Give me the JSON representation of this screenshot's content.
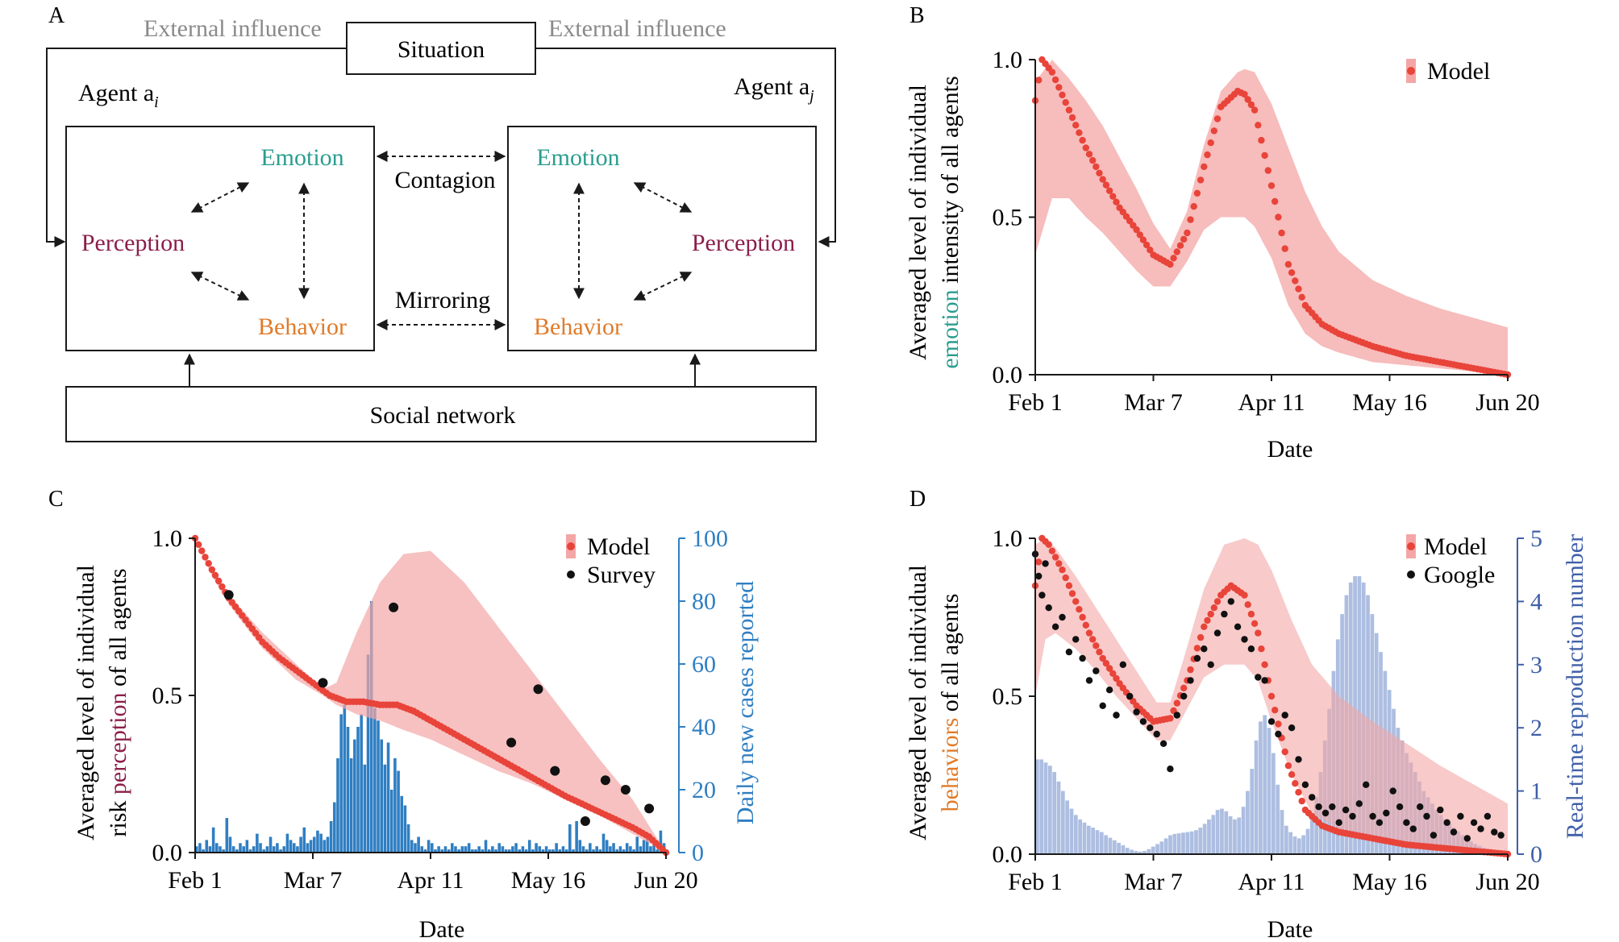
{
  "colors": {
    "emotion": "#2a9d8f",
    "perception": "#8b1e4a",
    "behavior": "#e07b2a",
    "model": "#e8443a",
    "band": "#f4a6a6",
    "gray_text": "#8a8a8a",
    "cases_bar": "#2f7ec2",
    "rt_bar": "#9fb3dc",
    "right_axis_blue": "#2f7ec2",
    "right_axis_navy": "#3f5fa8"
  },
  "panelA": {
    "label": "A",
    "external_left": "External influence",
    "external_right": "External influence",
    "situation": "Situation",
    "agent_i": "Agent a",
    "agent_i_sub": "i",
    "agent_j": "Agent a",
    "agent_j_sub": "j",
    "emotion": "Emotion",
    "perception": "Perception",
    "behavior": "Behavior",
    "contagion": "Contagion",
    "mirroring": "Mirroring",
    "social_network": "Social network"
  },
  "panelB": {
    "label": "B",
    "ylabel_part1": "Averaged level of individual",
    "ylabel_colored": "emotion",
    "ylabel_part2": " intensity of all agents",
    "xlabel": "Date",
    "legend_model": "Model"
  },
  "panelC": {
    "label": "C",
    "ylabel_part1": "Averaged level of individual",
    "ylabel_pre": "risk ",
    "ylabel_colored": "perception",
    "ylabel_post": " of all agents",
    "ylabel_right": "Daily new cases reported",
    "xlabel": "Date",
    "legend_model": "Model",
    "legend_survey": "Survey"
  },
  "panelD": {
    "label": "D",
    "ylabel_part1": "Averaged level of individual",
    "ylabel_colored": "behaviors",
    "ylabel_post": " of all agents",
    "ylabel_right": "Real-time reproduction number",
    "xlabel": "Date",
    "legend_model": "Model",
    "legend_google": "Google"
  },
  "chart_data": [
    {
      "type": "line",
      "panel": "B",
      "title": "",
      "xlabel": "Date",
      "ylabel": "Averaged level of individual emotion intensity of all agents",
      "x_ticks": [
        "Feb 1",
        "Mar 7",
        "Apr 11",
        "May 16",
        "Jun 20"
      ],
      "x_range_days": [
        0,
        140
      ],
      "y_ticks": [
        "0.0",
        "0.5",
        "1.0"
      ],
      "ylim": [
        0,
        1
      ],
      "series": [
        {
          "name": "Model",
          "x": [
            0,
            2,
            5,
            10,
            15,
            20,
            25,
            30,
            35,
            40,
            45,
            50,
            55,
            60,
            62,
            65,
            70,
            75,
            80,
            85,
            90,
            95,
            100,
            110,
            120,
            130,
            140
          ],
          "values": [
            0.87,
            1.0,
            0.96,
            0.84,
            0.72,
            0.62,
            0.53,
            0.46,
            0.38,
            0.35,
            0.45,
            0.66,
            0.85,
            0.9,
            0.89,
            0.84,
            0.6,
            0.35,
            0.22,
            0.16,
            0.13,
            0.11,
            0.09,
            0.06,
            0.04,
            0.02,
            0.0
          ]
        }
      ],
      "band": {
        "x": [
          0,
          5,
          10,
          15,
          20,
          25,
          30,
          35,
          40,
          45,
          50,
          55,
          60,
          62,
          65,
          70,
          75,
          80,
          85,
          90,
          100,
          110,
          120,
          130,
          140
        ],
        "upper": [
          0.93,
          1.0,
          0.94,
          0.87,
          0.79,
          0.69,
          0.59,
          0.48,
          0.4,
          0.52,
          0.73,
          0.9,
          0.96,
          0.97,
          0.96,
          0.86,
          0.72,
          0.58,
          0.47,
          0.39,
          0.3,
          0.25,
          0.21,
          0.18,
          0.15
        ],
        "lower": [
          0.38,
          0.56,
          0.56,
          0.5,
          0.45,
          0.39,
          0.33,
          0.28,
          0.28,
          0.36,
          0.46,
          0.5,
          0.5,
          0.5,
          0.47,
          0.37,
          0.22,
          0.13,
          0.09,
          0.07,
          0.04,
          0.03,
          0.02,
          0.01,
          0.0
        ]
      }
    },
    {
      "type": "line",
      "panel": "C",
      "title": "",
      "xlabel": "Date",
      "ylabel": "Averaged level of individual risk perception of all agents",
      "ylabel_right": "Daily new cases reported",
      "x_ticks": [
        "Feb 1",
        "Mar 7",
        "Apr 11",
        "May 16",
        "Jun 20"
      ],
      "x_range_days": [
        0,
        140
      ],
      "y_ticks": [
        "0.0",
        "0.5",
        "1.0"
      ],
      "ylim": [
        0,
        1
      ],
      "y2_ticks": [
        "0",
        "20",
        "40",
        "60",
        "80",
        "100"
      ],
      "y2lim": [
        0,
        100
      ],
      "series": [
        {
          "name": "Model",
          "x": [
            0,
            5,
            10,
            15,
            20,
            25,
            30,
            35,
            40,
            45,
            50,
            55,
            60,
            65,
            70,
            80,
            90,
            100,
            110,
            120,
            130,
            135,
            140
          ],
          "values": [
            1.0,
            0.9,
            0.81,
            0.74,
            0.67,
            0.62,
            0.58,
            0.54,
            0.5,
            0.48,
            0.48,
            0.47,
            0.47,
            0.45,
            0.42,
            0.36,
            0.3,
            0.24,
            0.18,
            0.13,
            0.08,
            0.05,
            0.0
          ]
        },
        {
          "name": "Survey",
          "x": [
            10,
            38,
            59,
            94,
            102,
            107,
            116,
            122,
            128,
            135
          ],
          "values": [
            0.82,
            0.54,
            0.78,
            0.35,
            0.52,
            0.26,
            0.1,
            0.23,
            0.2,
            0.14
          ]
        }
      ],
      "band": {
        "x": [
          0,
          5,
          10,
          20,
          30,
          38,
          42,
          48,
          55,
          62,
          70,
          80,
          90,
          100,
          110,
          120,
          130,
          140
        ],
        "upper": [
          1.0,
          0.9,
          0.82,
          0.7,
          0.6,
          0.52,
          0.54,
          0.7,
          0.86,
          0.95,
          0.96,
          0.86,
          0.72,
          0.58,
          0.44,
          0.3,
          0.17,
          0.0
        ],
        "lower": [
          1.0,
          0.88,
          0.79,
          0.65,
          0.55,
          0.5,
          0.47,
          0.44,
          0.42,
          0.39,
          0.36,
          0.31,
          0.26,
          0.22,
          0.17,
          0.12,
          0.06,
          0.0
        ]
      },
      "bars": {
        "name": "Daily new cases reported",
        "values": [
          2,
          3,
          1,
          4,
          2,
          8,
          3,
          2,
          1,
          11,
          5,
          2,
          1,
          3,
          2,
          4,
          1,
          2,
          6,
          3,
          1,
          2,
          5,
          2,
          3,
          1,
          2,
          6,
          4,
          3,
          2,
          5,
          8,
          3,
          4,
          5,
          7,
          6,
          4,
          5,
          10,
          16,
          30,
          44,
          47,
          40,
          30,
          36,
          40,
          44,
          28,
          63,
          80,
          46,
          42,
          36,
          28,
          35,
          20,
          30,
          26,
          18,
          15,
          9,
          4,
          3,
          5,
          2,
          1,
          4,
          3,
          1,
          2,
          1,
          2,
          1,
          3,
          2,
          1,
          2,
          2,
          3,
          1,
          1,
          2,
          1,
          4,
          1,
          2,
          1,
          3,
          2,
          1,
          1,
          2,
          3,
          1,
          2,
          1,
          4,
          1,
          3,
          2,
          1,
          2,
          1,
          1,
          3,
          1,
          2,
          1,
          9,
          1,
          10,
          4,
          2,
          1,
          3,
          1,
          2,
          1,
          6,
          4,
          2,
          3,
          1,
          2,
          1,
          3,
          2,
          1,
          5,
          2,
          4,
          6,
          2,
          3,
          1,
          7,
          3
        ]
      }
    },
    {
      "type": "line",
      "panel": "D",
      "title": "",
      "xlabel": "Date",
      "ylabel": "Averaged level of individual behaviors of all agents",
      "ylabel_right": "Real-time reproduction number",
      "x_ticks": [
        "Feb 1",
        "Mar 7",
        "Apr 11",
        "May 16",
        "Jun 20"
      ],
      "x_range_days": [
        0,
        140
      ],
      "y_ticks": [
        "0.0",
        "0.5",
        "1.0"
      ],
      "ylim": [
        0,
        1
      ],
      "y2_ticks": [
        "0",
        "1",
        "2",
        "3",
        "4",
        "5"
      ],
      "y2lim": [
        0,
        5
      ],
      "series": [
        {
          "name": "Model",
          "x": [
            0,
            2,
            4,
            8,
            12,
            16,
            20,
            25,
            30,
            35,
            40,
            45,
            50,
            55,
            58,
            62,
            66,
            70,
            75,
            80,
            85,
            90,
            100,
            110,
            120,
            130,
            140
          ],
          "values": [
            0.85,
            1.0,
            0.98,
            0.9,
            0.8,
            0.7,
            0.62,
            0.54,
            0.47,
            0.42,
            0.43,
            0.55,
            0.72,
            0.82,
            0.85,
            0.82,
            0.7,
            0.5,
            0.28,
            0.14,
            0.09,
            0.07,
            0.05,
            0.03,
            0.02,
            0.01,
            0.0
          ]
        },
        {
          "name": "Google",
          "x": [
            0,
            1,
            2,
            3,
            4,
            6,
            8,
            10,
            12,
            14,
            16,
            18,
            20,
            22,
            24,
            26,
            28,
            30,
            32,
            34,
            36,
            38,
            40,
            42,
            44,
            46,
            48,
            50,
            52,
            54,
            56,
            58,
            60,
            62,
            64,
            66,
            68,
            70,
            72,
            74,
            76,
            78,
            80,
            82,
            84,
            86,
            88,
            90,
            92,
            94,
            96,
            98,
            100,
            102,
            104,
            106,
            108,
            110,
            112,
            114,
            116,
            118,
            120,
            122,
            124,
            126,
            128,
            130,
            132,
            134,
            136,
            138
          ],
          "values": [
            0.95,
            0.88,
            0.82,
            0.92,
            0.78,
            0.72,
            0.75,
            0.64,
            0.68,
            0.62,
            0.55,
            0.58,
            0.47,
            0.52,
            0.44,
            0.6,
            0.5,
            0.45,
            0.42,
            0.4,
            0.38,
            0.35,
            0.27,
            0.44,
            0.5,
            0.55,
            0.62,
            0.65,
            0.6,
            0.7,
            0.76,
            0.8,
            0.72,
            0.68,
            0.65,
            0.56,
            0.55,
            0.42,
            0.38,
            0.44,
            0.4,
            0.3,
            0.22,
            0.18,
            0.15,
            0.13,
            0.15,
            0.1,
            0.14,
            0.12,
            0.16,
            0.22,
            0.12,
            0.1,
            0.13,
            0.2,
            0.15,
            0.1,
            0.08,
            0.15,
            0.12,
            0.06,
            0.14,
            0.1,
            0.07,
            0.12,
            0.05,
            0.1,
            0.08,
            0.12,
            0.07,
            0.06
          ]
        }
      ],
      "band": {
        "x": [
          0,
          3,
          6,
          12,
          18,
          24,
          30,
          36,
          40,
          44,
          50,
          56,
          62,
          66,
          70,
          76,
          82,
          90,
          100,
          110,
          120,
          130,
          140
        ],
        "upper": [
          0.98,
          1.0,
          0.97,
          0.88,
          0.78,
          0.68,
          0.58,
          0.48,
          0.48,
          0.62,
          0.84,
          0.98,
          1.0,
          0.98,
          0.9,
          0.74,
          0.6,
          0.5,
          0.42,
          0.35,
          0.28,
          0.22,
          0.16
        ],
        "lower": [
          0.5,
          0.68,
          0.7,
          0.65,
          0.58,
          0.5,
          0.43,
          0.36,
          0.36,
          0.44,
          0.56,
          0.6,
          0.6,
          0.55,
          0.42,
          0.25,
          0.13,
          0.08,
          0.05,
          0.03,
          0.02,
          0.01,
          0.0
        ]
      },
      "bars": {
        "name": "Real-time reproduction number",
        "values": [
          1.5,
          1.5,
          1.45,
          1.4,
          1.3,
          1.15,
          1.0,
          0.85,
          0.72,
          0.62,
          0.55,
          0.5,
          0.45,
          0.42,
          0.38,
          0.35,
          0.3,
          0.26,
          0.22,
          0.18,
          0.14,
          0.1,
          0.07,
          0.05,
          0.04,
          0.05,
          0.08,
          0.12,
          0.16,
          0.2,
          0.25,
          0.3,
          0.32,
          0.33,
          0.34,
          0.35,
          0.36,
          0.38,
          0.42,
          0.48,
          0.55,
          0.62,
          0.7,
          0.72,
          0.68,
          0.6,
          0.55,
          0.58,
          0.75,
          1.0,
          1.35,
          1.8,
          2.1,
          2.2,
          2.0,
          1.6,
          1.1,
          0.7,
          0.45,
          0.35,
          0.28,
          0.25,
          0.3,
          0.4,
          0.6,
          0.9,
          1.3,
          1.8,
          2.3,
          2.9,
          3.4,
          3.8,
          4.1,
          4.3,
          4.4,
          4.4,
          4.3,
          4.1,
          3.8,
          3.5,
          3.2,
          2.9,
          2.6,
          2.3,
          2.0,
          1.8,
          1.6,
          1.45,
          1.3,
          1.15,
          1.0,
          0.9,
          0.8,
          0.7,
          0.62,
          0.55,
          0.48,
          0.42,
          0.36,
          0.3,
          0.25,
          0.2,
          0.16,
          0.13,
          0.1,
          0.08,
          0.07,
          0.06,
          0.05,
          0.05
        ]
      }
    }
  ]
}
